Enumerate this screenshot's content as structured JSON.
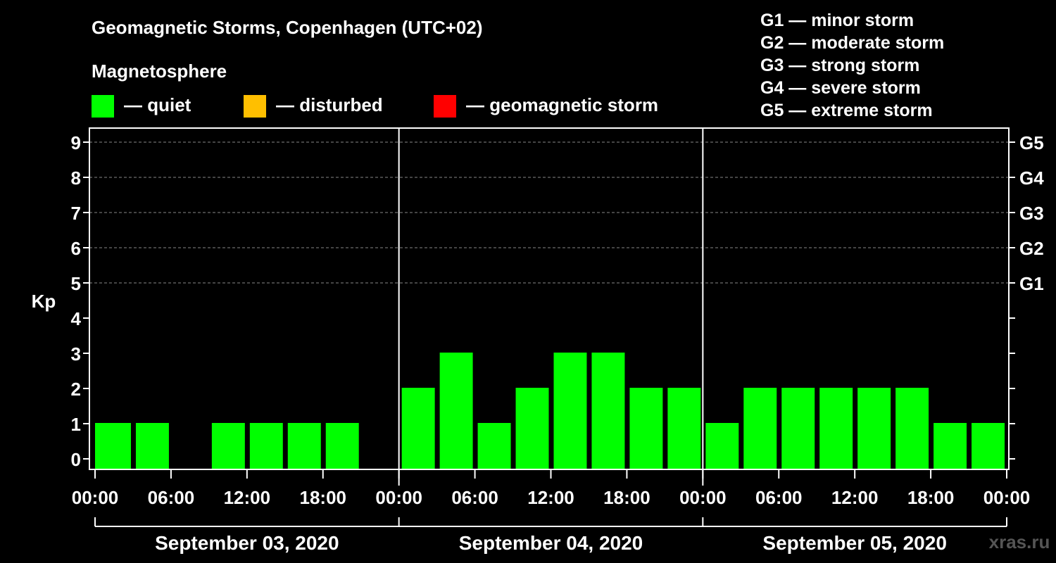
{
  "header": {
    "title": "Geomagnetic Storms, Copenhagen (UTC+02)",
    "magnetosphere_label": "Magnetosphere"
  },
  "legend": {
    "items": [
      {
        "label": "— quiet",
        "color": "#00ff00"
      },
      {
        "label": "— disturbed",
        "color": "#ffbf00"
      },
      {
        "label": "— geomagnetic storm",
        "color": "#ff0000"
      }
    ],
    "storm_scale": [
      "G1 — minor storm",
      "G2 — moderate storm",
      "G3 — strong storm",
      "G4 — severe storm",
      "G5 — extreme storm"
    ]
  },
  "watermark": "xras.ru",
  "chart_data": {
    "type": "bar",
    "title": "Geomagnetic Storms, Copenhagen (UTC+02)",
    "ylabel": "Kp",
    "xlabel": "",
    "ylim": [
      0,
      9
    ],
    "yticks": [
      "0",
      "1",
      "2",
      "3",
      "4",
      "5",
      "6",
      "7",
      "8",
      "9"
    ],
    "right_axis_labels": [
      {
        "level": 5,
        "label": "G1"
      },
      {
        "level": 6,
        "label": "G2"
      },
      {
        "level": 7,
        "label": "G3"
      },
      {
        "level": 8,
        "label": "G4"
      },
      {
        "level": 9,
        "label": "G5"
      }
    ],
    "xticks": [
      "00:00",
      "06:00",
      "12:00",
      "18:00",
      "00:00",
      "06:00",
      "12:00",
      "18:00",
      "00:00",
      "06:00",
      "12:00",
      "18:00",
      "00:00"
    ],
    "days": [
      "September 03, 2020",
      "September 04, 2020",
      "September 05, 2020"
    ],
    "interval_hours": 3,
    "bar_color": "#00ff00",
    "values": [
      1,
      1,
      0,
      1,
      1,
      1,
      1,
      0,
      2,
      3,
      1,
      2,
      3,
      3,
      2,
      2,
      1,
      2,
      2,
      2,
      2,
      2,
      1,
      1
    ]
  }
}
